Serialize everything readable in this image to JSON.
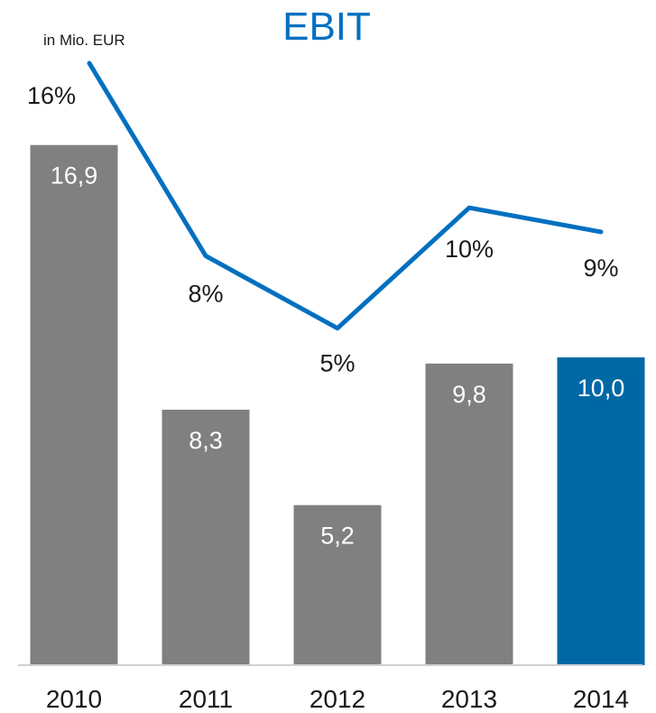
{
  "chart_data": {
    "type": "bar",
    "title": "EBIT",
    "unit_label": "in Mio. EUR",
    "categories": [
      "2010",
      "2011",
      "2012",
      "2013",
      "2014"
    ],
    "series": [
      {
        "values": [
          16.9,
          8.3,
          5.2,
          9.8,
          10.0
        ],
        "value_labels": [
          "16,9",
          "8,3",
          "5,2",
          "9,8",
          "10,0"
        ],
        "colors": [
          "#808080",
          "#808080",
          "#808080",
          "#808080",
          "#0068A5"
        ]
      },
      {
        "type": "line",
        "values": [
          16,
          8,
          5,
          10,
          9
        ],
        "value_labels": [
          "16%",
          "8%",
          "5%",
          "10%",
          "9%"
        ],
        "color": "#0070C0"
      }
    ],
    "grid": false,
    "legend": "none"
  },
  "colors": {
    "title": "#0070C0",
    "text": "#1a1a1a",
    "bar_label": "#ffffff",
    "axis_line": "#d0d0d0"
  }
}
